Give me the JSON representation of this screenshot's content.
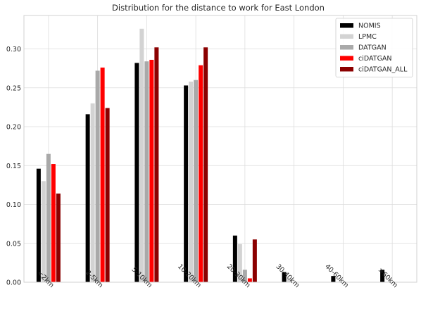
{
  "chart_data": {
    "type": "bar",
    "title": "Distribution for the distance to work for East London",
    "xlabel": "",
    "ylabel": "",
    "ylim": [
      0,
      0.343
    ],
    "yticks": [
      "0.00",
      "0.05",
      "0.10",
      "0.15",
      "0.20",
      "0.25",
      "0.30"
    ],
    "categories": [
      "<2km",
      "2-5km",
      "5-10km",
      "10-20km",
      "20-30km",
      "30-40km",
      "40-60km",
      ">60km"
    ],
    "grid": true,
    "legend_position": "top-right",
    "series": [
      {
        "name": "NOMIS",
        "color": "#000000",
        "values": [
          0.146,
          0.216,
          0.282,
          0.253,
          0.06,
          0.013,
          0.008,
          0.016
        ]
      },
      {
        "name": "LPMC",
        "color": "#d3d3d3",
        "values": [
          0.13,
          0.23,
          0.326,
          0.258,
          0.049,
          0.004,
          0.0,
          0.0
        ]
      },
      {
        "name": "DATGAN",
        "color": "#a9a9a9",
        "values": [
          0.165,
          0.272,
          0.284,
          0.26,
          0.016,
          0.0,
          0.0,
          0.0
        ]
      },
      {
        "name": "ciDATGAN",
        "color": "#ff0000",
        "values": [
          0.152,
          0.276,
          0.286,
          0.279,
          0.005,
          0.0,
          0.0,
          0.0
        ]
      },
      {
        "name": "ciDATGAN_ALL",
        "color": "#8b0000",
        "values": [
          0.114,
          0.224,
          0.302,
          0.302,
          0.055,
          0.0,
          0.0,
          0.0
        ]
      }
    ]
  }
}
